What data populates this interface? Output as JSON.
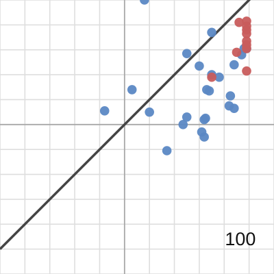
{
  "chart_data": {
    "type": "scatter",
    "title": "",
    "xlabel": "",
    "ylabel": "",
    "xlim": [
      -100,
      120
    ],
    "ylim": [
      -120,
      100
    ],
    "grid": true,
    "grid_step": 20,
    "major_axis_values": {
      "x": 0,
      "y": 0
    },
    "tick_labels": [
      {
        "text": "100",
        "x": 93,
        "y": -93
      }
    ],
    "reference_line": {
      "label": "",
      "slope": 1,
      "intercept": 0,
      "color": "#444444"
    },
    "series": [
      {
        "color": "#5B88C4",
        "points": [
          [
            16,
            100
          ],
          [
            70,
            74
          ],
          [
            50,
            57
          ],
          [
            60,
            47
          ],
          [
            70,
            40
          ],
          [
            76,
            38
          ],
          [
            88,
            48
          ],
          [
            96,
            61
          ],
          [
            94,
            56
          ],
          [
            98,
            61
          ],
          [
            6,
            28
          ],
          [
            -16,
            11
          ],
          [
            20,
            10
          ],
          [
            50,
            6
          ],
          [
            65,
            5
          ],
          [
            68,
            27
          ],
          [
            66,
            28
          ],
          [
            85,
            23
          ],
          [
            84,
            15
          ],
          [
            88,
            13
          ],
          [
            47,
            0
          ],
          [
            64,
            4
          ],
          [
            62,
            -6
          ],
          [
            64,
            -10
          ],
          [
            34,
            -21
          ]
        ]
      },
      {
        "color": "#C85C5C",
        "points": [
          [
            98,
            83
          ],
          [
            92,
            82
          ],
          [
            98,
            79
          ],
          [
            98,
            76
          ],
          [
            98,
            73
          ],
          [
            98,
            67
          ],
          [
            98,
            64
          ],
          [
            98,
            61
          ],
          [
            90,
            58
          ],
          [
            70,
            38
          ],
          [
            98,
            43
          ]
        ]
      }
    ]
  }
}
